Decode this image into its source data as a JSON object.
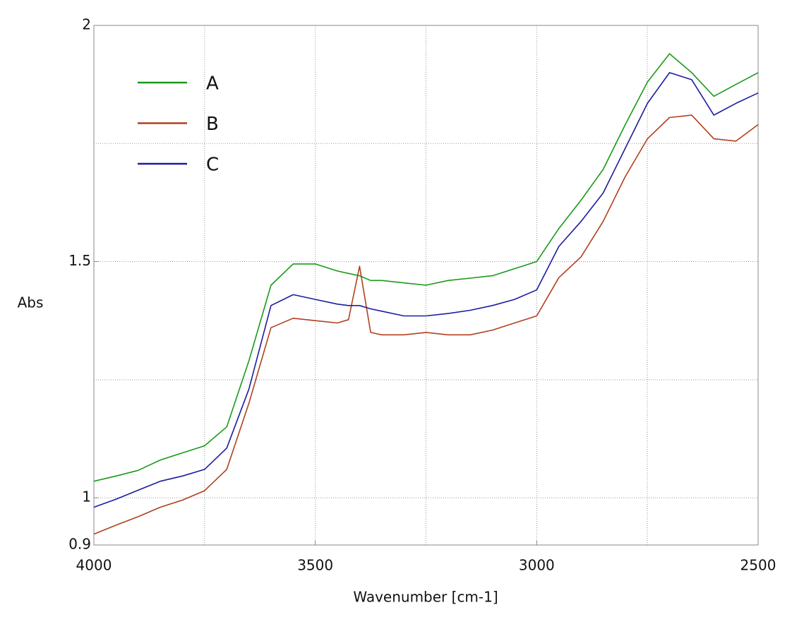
{
  "chart_data": {
    "type": "line",
    "x_label": "Wavenumber [cm-1]",
    "y_label": "Abs",
    "x": [
      4000,
      3950,
      3900,
      3850,
      3800,
      3750,
      3700,
      3650,
      3600,
      3550,
      3500,
      3450,
      3425,
      3400,
      3375,
      3350,
      3300,
      3250,
      3200,
      3150,
      3100,
      3050,
      3000,
      2950,
      2900,
      2850,
      2800,
      2750,
      2700,
      2650,
      2600,
      2550,
      2500
    ],
    "series": [
      {
        "name": "A",
        "color": "#1a9a1a",
        "values": [
          1.035,
          1.046,
          1.058,
          1.08,
          1.095,
          1.11,
          1.15,
          1.29,
          1.45,
          1.495,
          1.495,
          1.48,
          1.475,
          1.47,
          1.46,
          1.46,
          1.455,
          1.45,
          1.46,
          1.465,
          1.47,
          1.485,
          1.5,
          1.57,
          1.63,
          1.695,
          1.79,
          1.88,
          1.94,
          1.9,
          1.85,
          1.875,
          1.9
        ]
      },
      {
        "name": "B",
        "color": "#b0401e",
        "values": [
          0.923,
          0.942,
          0.96,
          0.98,
          0.995,
          1.015,
          1.06,
          1.2,
          1.36,
          1.38,
          1.375,
          1.37,
          1.377,
          1.49,
          1.35,
          1.345,
          1.345,
          1.35,
          1.345,
          1.345,
          1.355,
          1.37,
          1.385,
          1.466,
          1.51,
          1.585,
          1.68,
          1.76,
          1.805,
          1.81,
          1.76,
          1.755,
          1.79
        ]
      },
      {
        "name": "C",
        "color": "#1c1ca0",
        "values": [
          0.98,
          0.997,
          1.016,
          1.035,
          1.046,
          1.06,
          1.105,
          1.23,
          1.407,
          1.43,
          1.42,
          1.41,
          1.407,
          1.407,
          1.4,
          1.395,
          1.385,
          1.385,
          1.39,
          1.397,
          1.407,
          1.42,
          1.44,
          1.532,
          1.585,
          1.645,
          1.74,
          1.835,
          1.9,
          1.885,
          1.81,
          1.835,
          1.857
        ]
      }
    ],
    "xlim": [
      4000,
      2500
    ],
    "ylim": [
      0.9,
      2
    ],
    "xticks": [
      4000,
      3500,
      3000,
      2500
    ],
    "yticks": [
      0.9,
      1,
      1.5,
      2
    ],
    "xgrid": [
      3750,
      3500,
      3250,
      3000,
      2750
    ],
    "ygrid": [
      1,
      1.25,
      1.5,
      1.75
    ],
    "grid": true,
    "legend": "upper left"
  }
}
